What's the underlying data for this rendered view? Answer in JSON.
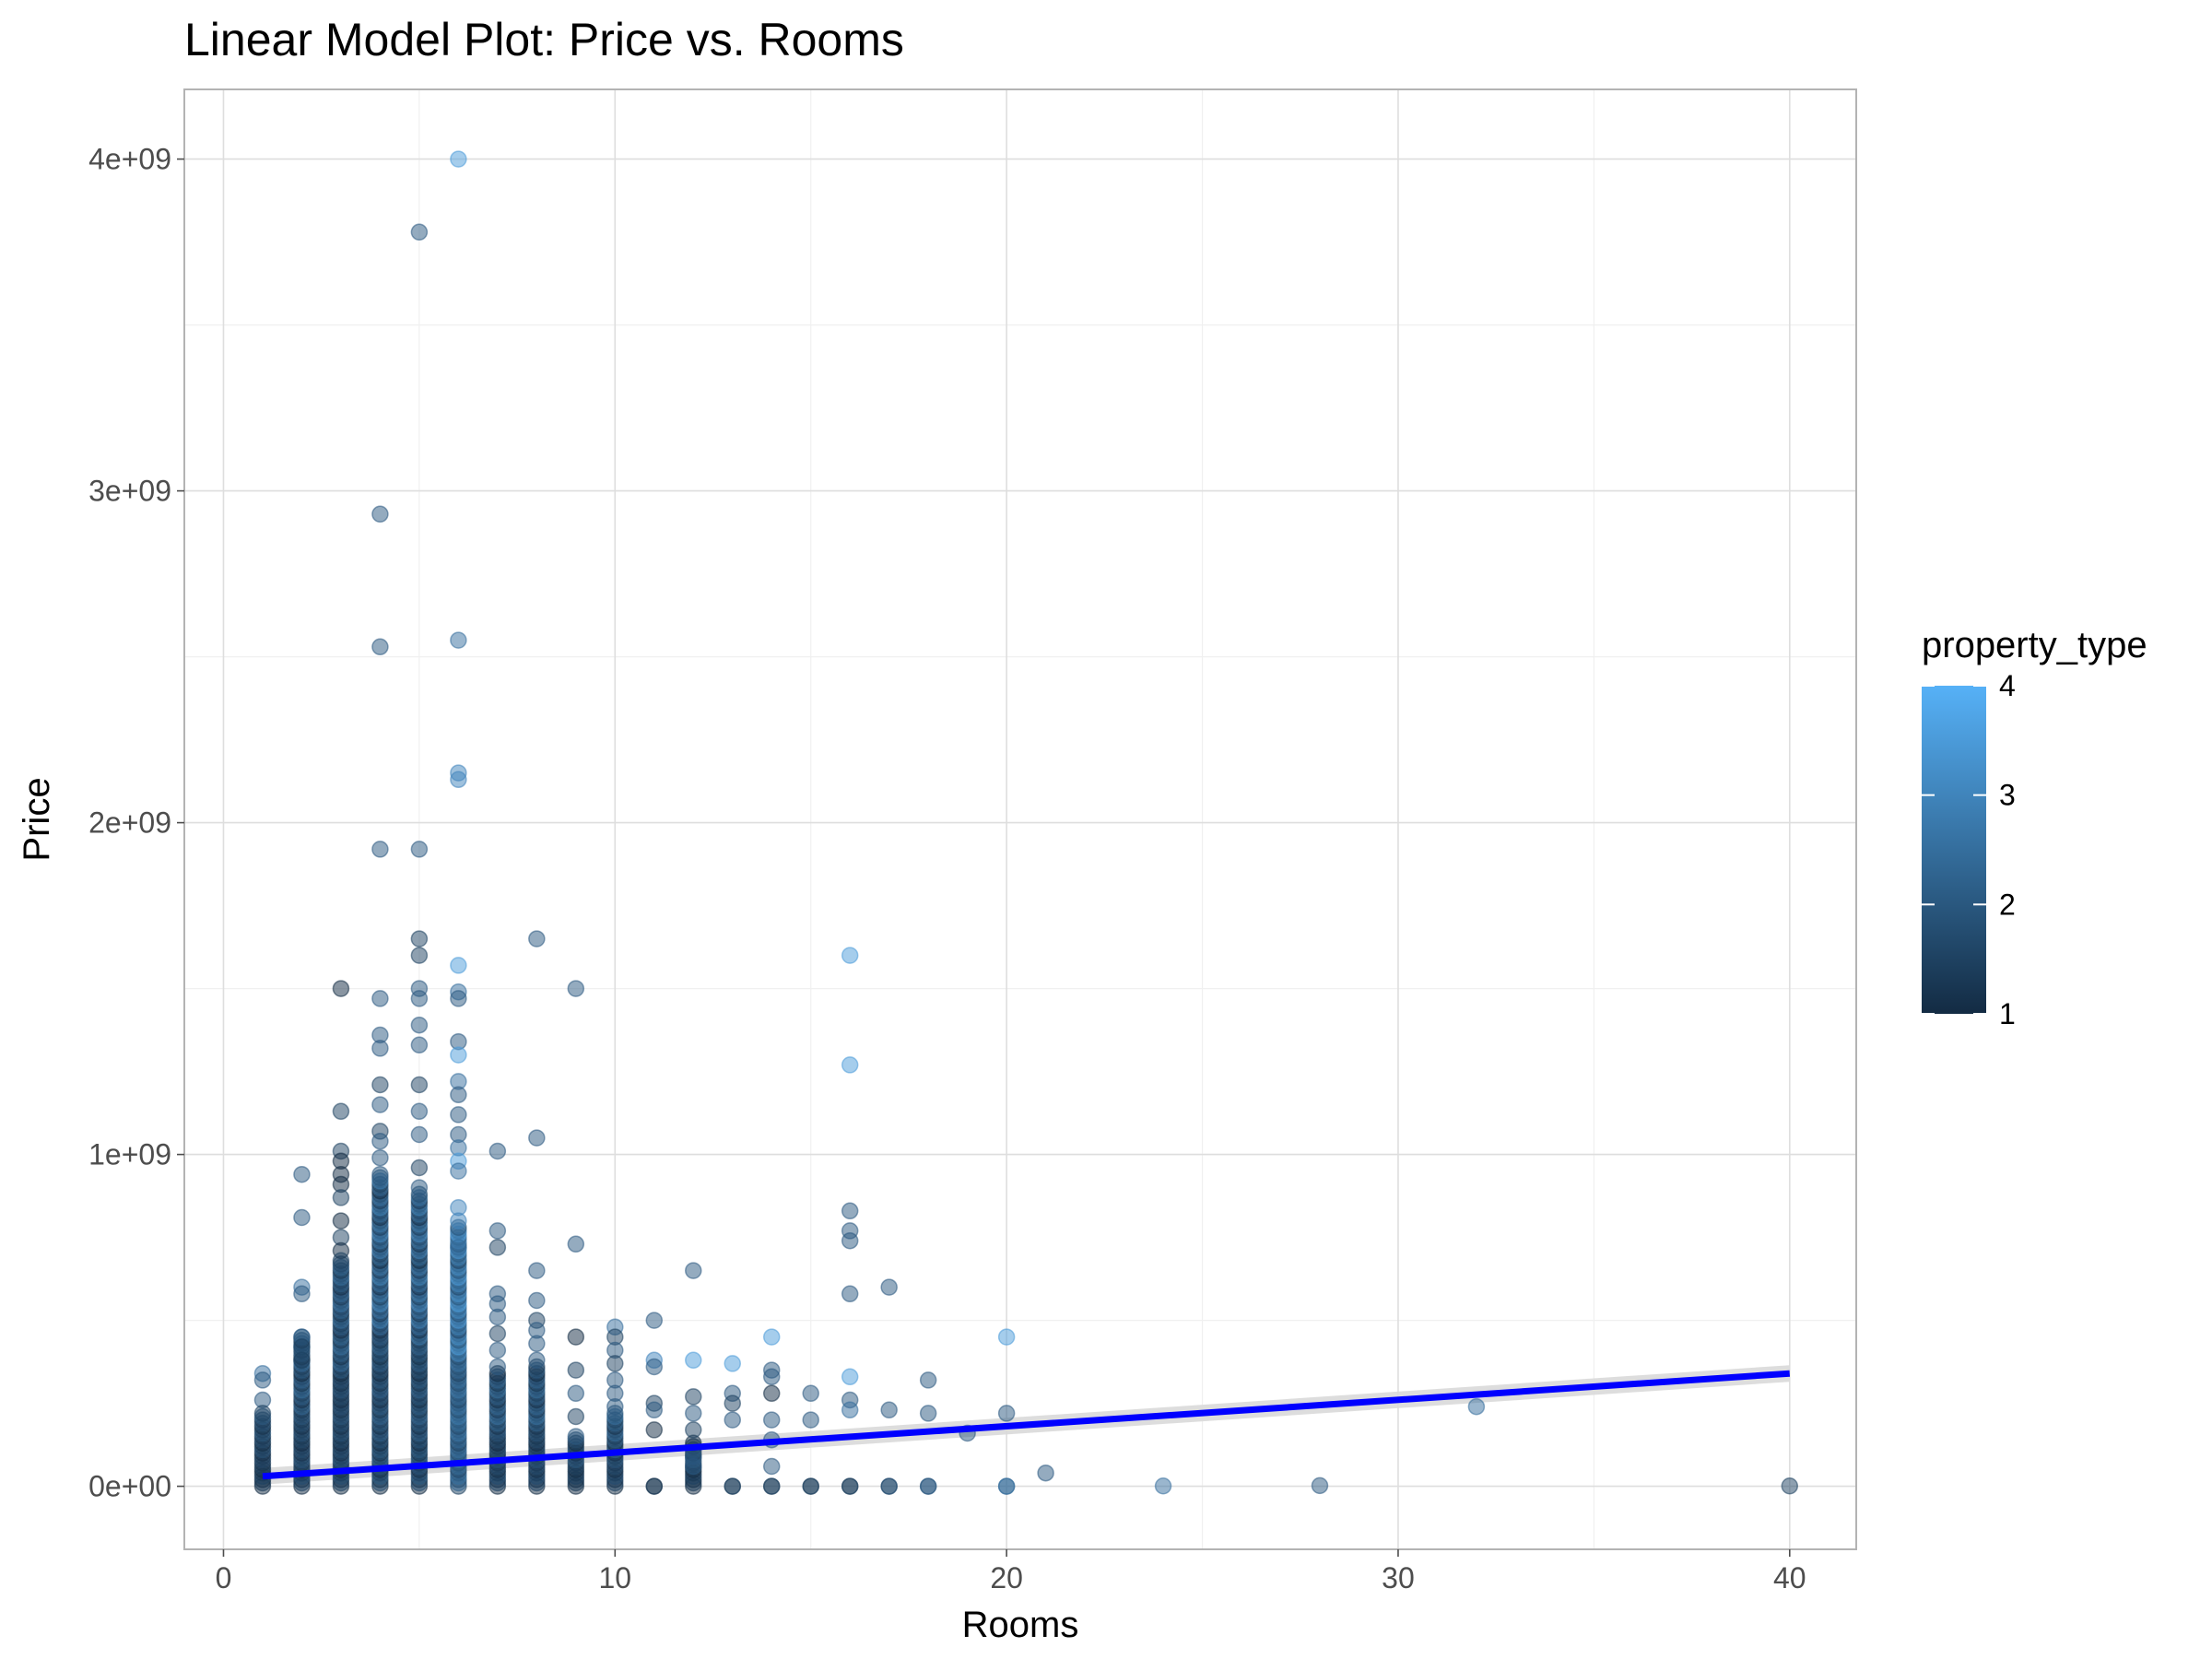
{
  "chart_data": {
    "type": "scatter",
    "title": "Linear Model Plot: Price vs. Rooms",
    "xlabel": "Rooms",
    "ylabel": "Price",
    "xlim": [
      -1,
      41.7
    ],
    "ylim": [
      -190000000,
      4210000000
    ],
    "x_ticks": [
      0,
      10,
      20,
      30,
      40
    ],
    "x_tick_labels": [
      "0",
      "10",
      "20",
      "30",
      "40"
    ],
    "y_ticks": [
      0,
      1000000000,
      2000000000,
      3000000000,
      4000000000
    ],
    "y_tick_labels": [
      "0e+00",
      "1e+09",
      "2e+09",
      "3e+09",
      "4e+09"
    ],
    "grid": true,
    "legend": {
      "title": "property_type",
      "placement": "right",
      "type": "colorbar",
      "range": [
        1,
        4
      ],
      "ticks": [
        1,
        2,
        3,
        4
      ],
      "tick_labels": [
        "1",
        "2",
        "3",
        "4"
      ],
      "low_color": "#132b43",
      "high_color": "#56b1f7"
    },
    "point_color_scale": "property_type",
    "point_alpha": 0.5,
    "points": [
      [
        6,
        4000000000,
        3.5
      ],
      [
        5,
        3780000000,
        2
      ],
      [
        4,
        2930000000,
        2
      ],
      [
        4,
        2530000000,
        2
      ],
      [
        6,
        2550000000,
        2.5
      ],
      [
        6,
        2150000000,
        3
      ],
      [
        6,
        2130000000,
        3
      ],
      [
        4,
        1920000000,
        2
      ],
      [
        5,
        1920000000,
        2
      ],
      [
        3,
        1500000000,
        1
      ],
      [
        4,
        1470000000,
        2
      ],
      [
        4,
        1360000000,
        2
      ],
      [
        4,
        1320000000,
        2
      ],
      [
        4,
        1210000000,
        1.5
      ],
      [
        4,
        1150000000,
        2
      ],
      [
        4,
        1070000000,
        1.5
      ],
      [
        4,
        1040000000,
        2
      ],
      [
        4,
        990000000,
        2
      ],
      [
        4,
        940000000,
        2
      ],
      [
        5,
        1650000000,
        1.5
      ],
      [
        5,
        1600000000,
        1.5
      ],
      [
        5,
        1500000000,
        2
      ],
      [
        5,
        1470000000,
        2
      ],
      [
        5,
        1390000000,
        2
      ],
      [
        5,
        1330000000,
        2
      ],
      [
        5,
        1210000000,
        1.5
      ],
      [
        5,
        1130000000,
        2
      ],
      [
        5,
        1060000000,
        2
      ],
      [
        5,
        960000000,
        1.5
      ],
      [
        5,
        900000000,
        2
      ],
      [
        6,
        1570000000,
        3.5
      ],
      [
        6,
        1490000000,
        2.5
      ],
      [
        6,
        1470000000,
        2
      ],
      [
        6,
        1340000000,
        2
      ],
      [
        6,
        1300000000,
        3.5
      ],
      [
        6,
        1220000000,
        2.5
      ],
      [
        6,
        1180000000,
        2
      ],
      [
        6,
        1120000000,
        2
      ],
      [
        6,
        1060000000,
        2
      ],
      [
        6,
        1020000000,
        2.5
      ],
      [
        6,
        980000000,
        3.5
      ],
      [
        6,
        950000000,
        2.5
      ],
      [
        6,
        840000000,
        3
      ],
      [
        6,
        800000000,
        3
      ],
      [
        6,
        720000000,
        2.5
      ],
      [
        3,
        1130000000,
        1.5
      ],
      [
        3,
        1010000000,
        1.5
      ],
      [
        3,
        980000000,
        1
      ],
      [
        3,
        940000000,
        1
      ],
      [
        3,
        910000000,
        1
      ],
      [
        3,
        870000000,
        1.5
      ],
      [
        3,
        800000000,
        1
      ],
      [
        3,
        750000000,
        1.5
      ],
      [
        3,
        710000000,
        1
      ],
      [
        3,
        680000000,
        1.5
      ],
      [
        2,
        940000000,
        2
      ],
      [
        2,
        810000000,
        2
      ],
      [
        2,
        600000000,
        2.5
      ],
      [
        2,
        580000000,
        2
      ],
      [
        2,
        450000000,
        2
      ],
      [
        2,
        420000000,
        1.5
      ],
      [
        2,
        380000000,
        1.5
      ],
      [
        1,
        340000000,
        2.5
      ],
      [
        1,
        320000000,
        2
      ],
      [
        1,
        260000000,
        2
      ],
      [
        1,
        220000000,
        1.5
      ],
      [
        7,
        1010000000,
        2
      ],
      [
        7,
        770000000,
        2
      ],
      [
        7,
        720000000,
        1.5
      ],
      [
        7,
        580000000,
        2
      ],
      [
        7,
        550000000,
        2
      ],
      [
        7,
        510000000,
        2
      ],
      [
        7,
        460000000,
        1.5
      ],
      [
        7,
        410000000,
        2
      ],
      [
        7,
        360000000,
        2
      ],
      [
        8,
        1650000000,
        2
      ],
      [
        8,
        1050000000,
        2
      ],
      [
        8,
        650000000,
        2
      ],
      [
        8,
        560000000,
        2
      ],
      [
        8,
        500000000,
        1.5
      ],
      [
        8,
        470000000,
        2
      ],
      [
        8,
        430000000,
        2
      ],
      [
        8,
        380000000,
        2
      ],
      [
        9,
        1500000000,
        2
      ],
      [
        9,
        730000000,
        2
      ],
      [
        9,
        450000000,
        1
      ],
      [
        9,
        350000000,
        1.5
      ],
      [
        9,
        280000000,
        2
      ],
      [
        9,
        210000000,
        1.5
      ],
      [
        9,
        150000000,
        2
      ],
      [
        10,
        480000000,
        2.5
      ],
      [
        10,
        450000000,
        1.5
      ],
      [
        10,
        410000000,
        2
      ],
      [
        10,
        370000000,
        1.5
      ],
      [
        10,
        320000000,
        2
      ],
      [
        10,
        280000000,
        2
      ],
      [
        10,
        240000000,
        2
      ],
      [
        11,
        500000000,
        2
      ],
      [
        11,
        380000000,
        3
      ],
      [
        11,
        360000000,
        2
      ],
      [
        11,
        250000000,
        1.5
      ],
      [
        11,
        230000000,
        2
      ],
      [
        11,
        170000000,
        1
      ],
      [
        12,
        650000000,
        2
      ],
      [
        12,
        380000000,
        3.5
      ],
      [
        12,
        270000000,
        1.5
      ],
      [
        12,
        220000000,
        2
      ],
      [
        12,
        170000000,
        1.5
      ],
      [
        12,
        90000000,
        2
      ],
      [
        12,
        60000000,
        2
      ],
      [
        13,
        370000000,
        3.5
      ],
      [
        13,
        280000000,
        2
      ],
      [
        13,
        250000000,
        1.5
      ],
      [
        13,
        200000000,
        2
      ],
      [
        14,
        450000000,
        3.5
      ],
      [
        14,
        350000000,
        2
      ],
      [
        14,
        330000000,
        2
      ],
      [
        14,
        280000000,
        1
      ],
      [
        14,
        200000000,
        2
      ],
      [
        14,
        140000000,
        2
      ],
      [
        14,
        60000000,
        2
      ],
      [
        15,
        280000000,
        2
      ],
      [
        15,
        200000000,
        2
      ],
      [
        16,
        1600000000,
        3.5
      ],
      [
        16,
        1270000000,
        3.5
      ],
      [
        16,
        830000000,
        2
      ],
      [
        16,
        770000000,
        2
      ],
      [
        16,
        740000000,
        2
      ],
      [
        16,
        580000000,
        2
      ],
      [
        16,
        330000000,
        3.5
      ],
      [
        16,
        260000000,
        2
      ],
      [
        16,
        230000000,
        2.5
      ],
      [
        17,
        600000000,
        2
      ],
      [
        17,
        230000000,
        2
      ],
      [
        18,
        320000000,
        2
      ],
      [
        18,
        220000000,
        2
      ],
      [
        19,
        160000000,
        2
      ],
      [
        20,
        450000000,
        3.5
      ],
      [
        20,
        220000000,
        2
      ],
      [
        21,
        40000000,
        2
      ],
      [
        24,
        1000000,
        2.5
      ],
      [
        28,
        2000000,
        2
      ],
      [
        32,
        240000000,
        2.5
      ],
      [
        40,
        1000000,
        1.5
      ]
    ],
    "stacks": [
      {
        "x": 1,
        "y_min": 0,
        "y_max": 210000000,
        "pt_low": 1,
        "pt_high": 2
      },
      {
        "x": 2,
        "y_min": 0,
        "y_max": 450000000,
        "pt_low": 1,
        "pt_high": 2.5
      },
      {
        "x": 3,
        "y_min": 0,
        "y_max": 670000000,
        "pt_low": 1,
        "pt_high": 2.5
      },
      {
        "x": 4,
        "y_min": 0,
        "y_max": 930000000,
        "pt_low": 1,
        "pt_high": 3
      },
      {
        "x": 5,
        "y_min": 0,
        "y_max": 880000000,
        "pt_low": 1,
        "pt_high": 3
      },
      {
        "x": 6,
        "y_min": 0,
        "y_max": 780000000,
        "pt_low": 1.5,
        "pt_high": 3.5
      },
      {
        "x": 7,
        "y_min": 0,
        "y_max": 340000000,
        "pt_low": 1,
        "pt_high": 2.5
      },
      {
        "x": 8,
        "y_min": 0,
        "y_max": 360000000,
        "pt_low": 1,
        "pt_high": 2.5
      },
      {
        "x": 9,
        "y_min": 0,
        "y_max": 140000000,
        "pt_low": 1,
        "pt_high": 2
      },
      {
        "x": 10,
        "y_min": 0,
        "y_max": 220000000,
        "pt_low": 1,
        "pt_high": 2.5
      },
      {
        "x": 11,
        "y_min": 0,
        "y_max": 0,
        "pt_low": 1,
        "pt_high": 1.5
      },
      {
        "x": 12,
        "y_min": 0,
        "y_max": 130000000,
        "pt_low": 1,
        "pt_high": 2
      },
      {
        "x": 13,
        "y_min": 0,
        "y_max": 0,
        "pt_low": 1,
        "pt_high": 2
      },
      {
        "x": 14,
        "y_min": 0,
        "y_max": 0,
        "pt_low": 1,
        "pt_high": 2
      },
      {
        "x": 15,
        "y_min": 0,
        "y_max": 0,
        "pt_low": 1,
        "pt_high": 2
      },
      {
        "x": 16,
        "y_min": 0,
        "y_max": 0,
        "pt_low": 1,
        "pt_high": 2
      },
      {
        "x": 17,
        "y_min": 0,
        "y_max": 0,
        "pt_low": 1.5,
        "pt_high": 2
      },
      {
        "x": 18,
        "y_min": 0,
        "y_max": 0,
        "pt_low": 2,
        "pt_high": 2
      },
      {
        "x": 20,
        "y_min": 0,
        "y_max": 0,
        "pt_low": 2,
        "pt_high": 3
      }
    ],
    "regression": {
      "x": [
        1,
        40
      ],
      "y": [
        30000000,
        340000000
      ],
      "color": "#0000ff",
      "se_band": [
        [
          1,
          5000000,
          55000000
        ],
        [
          40,
          315000000,
          365000000
        ]
      ],
      "se_color": "#d9d9d9"
    }
  }
}
